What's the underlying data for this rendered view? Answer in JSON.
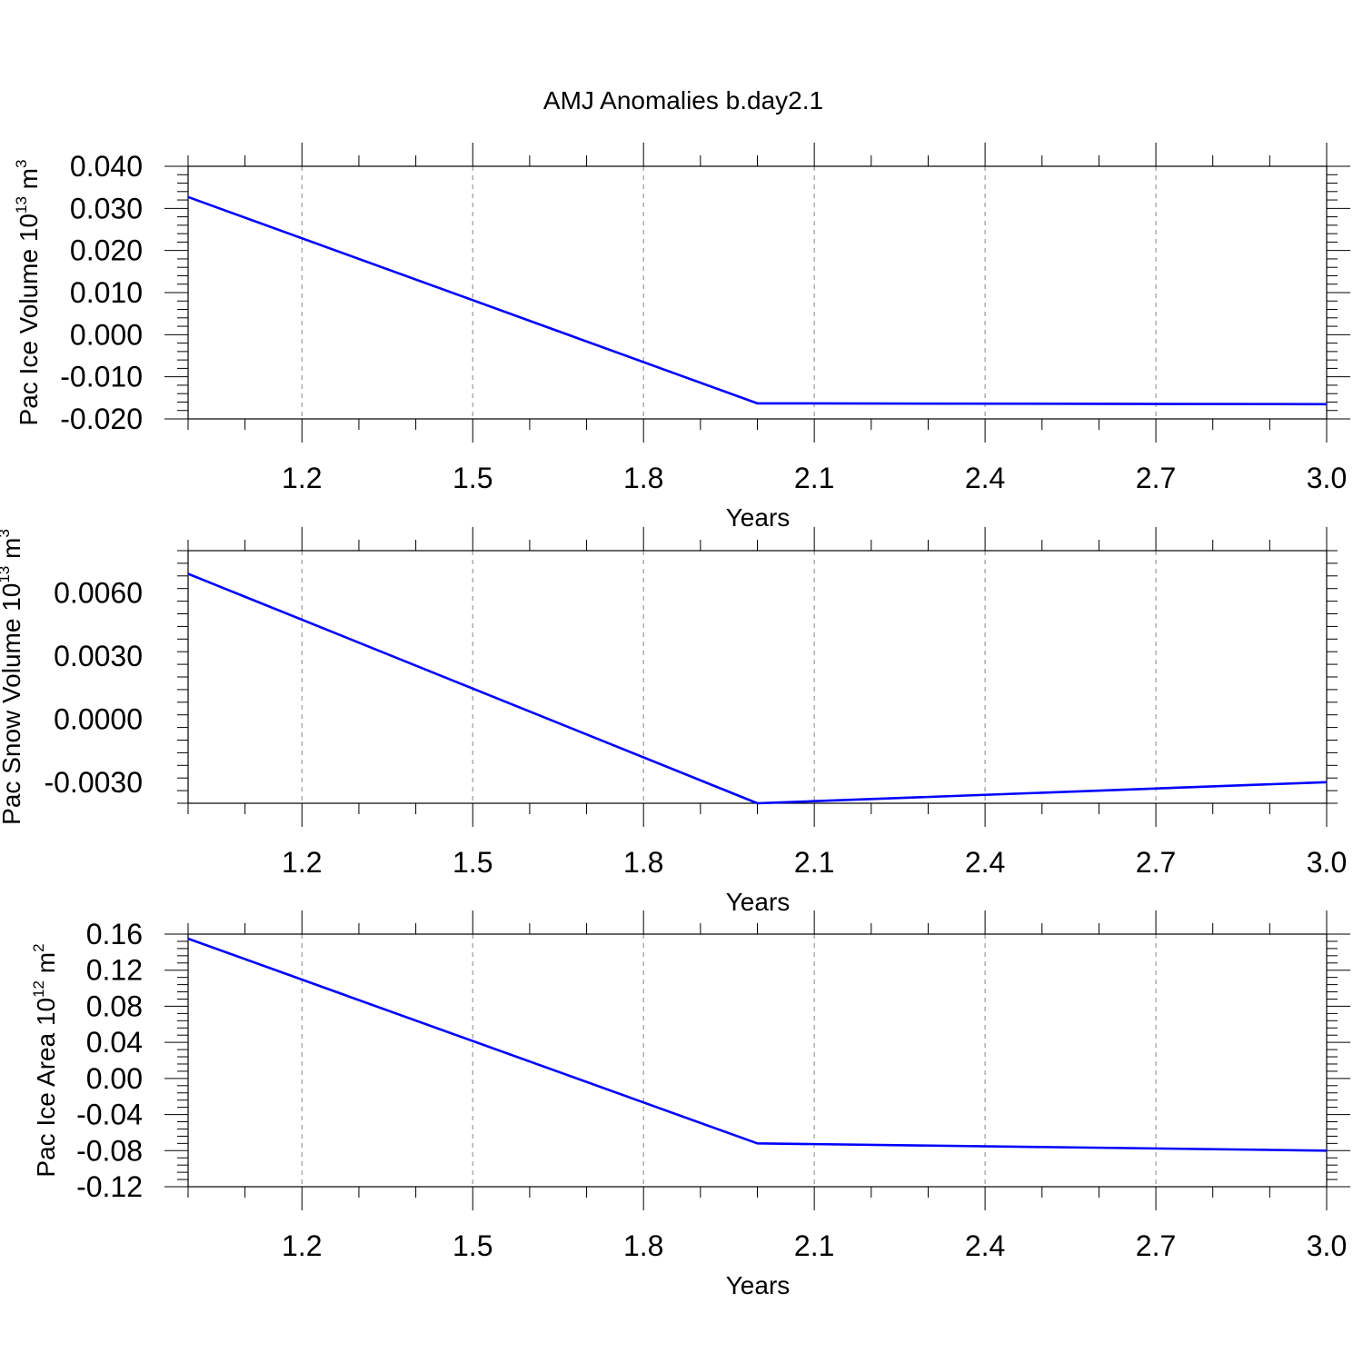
{
  "title": "AMJ Anomalies b.day2.1",
  "chart_data": [
    {
      "type": "line",
      "ylabel": {
        "prefix": "Pac Ice Volume 10",
        "exp": "13",
        "unit": "m",
        "unit_exp": "3"
      },
      "xlabel": "Years",
      "xlim": [
        1.0,
        3.0
      ],
      "ylim": [
        -0.02,
        0.04
      ],
      "xticks": [
        1.2,
        1.5,
        1.8,
        2.1,
        2.4,
        2.7,
        3.0
      ],
      "xtick_labels": [
        "1.2",
        "1.5",
        "1.8",
        "2.1",
        "2.4",
        "2.7",
        "3.0"
      ],
      "yticks": [
        0.04,
        0.03,
        0.02,
        0.01,
        0.0,
        -0.01,
        -0.02
      ],
      "ytick_labels": [
        "0.040",
        "0.030",
        "0.020",
        "0.010",
        "0.000",
        "-0.010",
        "-0.020"
      ],
      "grid": "x-dashed",
      "series": [
        {
          "x": [
            1.0,
            2.0,
            3.0
          ],
          "y": [
            0.0327,
            -0.0163,
            -0.0165
          ],
          "color": "#0000ff"
        }
      ]
    },
    {
      "type": "line",
      "ylabel": {
        "prefix": "Pac Snow Volume 10",
        "exp": "13",
        "unit": "m",
        "unit_exp": "3"
      },
      "xlabel": "Years",
      "xlim": [
        1.0,
        3.0
      ],
      "ylim": [
        -0.004,
        0.008
      ],
      "xticks": [
        1.2,
        1.5,
        1.8,
        2.1,
        2.4,
        2.7,
        3.0
      ],
      "xtick_labels": [
        "1.2",
        "1.5",
        "1.8",
        "2.1",
        "2.4",
        "2.7",
        "3.0"
      ],
      "yticks": [
        0.006,
        0.003,
        0.0,
        -0.003
      ],
      "ytick_labels": [
        "0.0060",
        "0.0030",
        "0.0000",
        "-0.0030"
      ],
      "grid": "x-dashed",
      "series": [
        {
          "x": [
            1.0,
            2.0,
            3.0
          ],
          "y": [
            0.0069,
            -0.004,
            -0.003
          ],
          "color": "#0000ff"
        }
      ]
    },
    {
      "type": "line",
      "ylabel": {
        "prefix": "Pac Ice Area 10",
        "exp": "12",
        "unit": "m",
        "unit_exp": "2"
      },
      "xlabel": "Years",
      "xlim": [
        1.0,
        3.0
      ],
      "ylim": [
        -0.12,
        0.16
      ],
      "xticks": [
        1.2,
        1.5,
        1.8,
        2.1,
        2.4,
        2.7,
        3.0
      ],
      "xtick_labels": [
        "1.2",
        "1.5",
        "1.8",
        "2.1",
        "2.4",
        "2.7",
        "3.0"
      ],
      "yticks": [
        0.16,
        0.12,
        0.08,
        0.04,
        0.0,
        -0.04,
        -0.08,
        -0.12
      ],
      "ytick_labels": [
        "0.16",
        "0.12",
        "0.08",
        "0.04",
        "0.00",
        "-0.04",
        "-0.08",
        "-0.12"
      ],
      "grid": "x-dashed",
      "series": [
        {
          "x": [
            1.0,
            2.0,
            3.0
          ],
          "y": [
            0.155,
            -0.072,
            -0.08
          ],
          "color": "#0000ff"
        }
      ]
    }
  ]
}
